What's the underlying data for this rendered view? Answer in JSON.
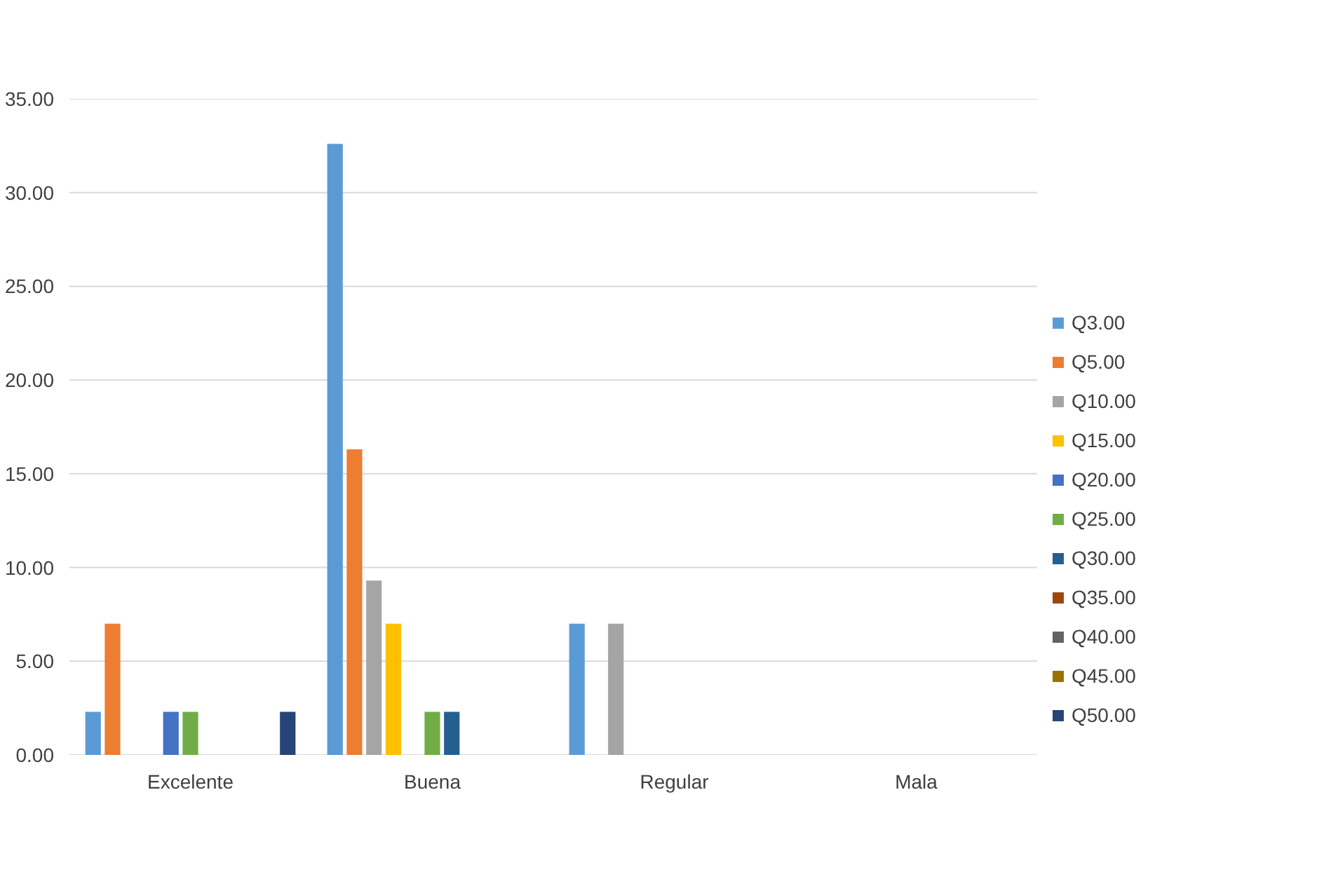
{
  "chart_data": {
    "type": "bar",
    "categories": [
      "Excelente",
      "Buena",
      "Regular",
      "Mala"
    ],
    "series": [
      {
        "name": "Q3.00",
        "color": "#5b9bd5",
        "values": [
          2.3,
          32.6,
          7.0,
          0
        ]
      },
      {
        "name": "Q5.00",
        "color": "#ed7d31",
        "values": [
          7.0,
          16.3,
          0,
          0
        ]
      },
      {
        "name": "Q10.00",
        "color": "#a5a5a5",
        "values": [
          0,
          9.3,
          7.0,
          0
        ]
      },
      {
        "name": "Q15.00",
        "color": "#ffc000",
        "values": [
          0,
          7.0,
          0,
          0
        ]
      },
      {
        "name": "Q20.00",
        "color": "#4472c4",
        "values": [
          2.3,
          0,
          0,
          0
        ]
      },
      {
        "name": "Q25.00",
        "color": "#70ad47",
        "values": [
          2.3,
          2.3,
          0,
          0
        ]
      },
      {
        "name": "Q30.00",
        "color": "#255e91",
        "values": [
          0,
          2.3,
          0,
          0
        ]
      },
      {
        "name": "Q35.00",
        "color": "#9e480e",
        "values": [
          0,
          0,
          0,
          0
        ]
      },
      {
        "name": "Q40.00",
        "color": "#636363",
        "values": [
          0,
          0,
          0,
          0
        ]
      },
      {
        "name": "Q45.00",
        "color": "#997300",
        "values": [
          0,
          0,
          0,
          0
        ]
      },
      {
        "name": "Q50.00",
        "color": "#264478",
        "values": [
          2.3,
          0,
          0,
          0
        ]
      }
    ],
    "ylim": [
      0,
      35
    ],
    "yticks": [
      {
        "value": 0,
        "label": "0.00"
      },
      {
        "value": 5,
        "label": "5.00"
      },
      {
        "value": 10,
        "label": "10.00"
      },
      {
        "value": 15,
        "label": "15.00"
      },
      {
        "value": 20,
        "label": "20.00"
      },
      {
        "value": 25,
        "label": "25.00"
      },
      {
        "value": 30,
        "label": "30.00"
      },
      {
        "value": 35,
        "label": "35.00"
      }
    ],
    "grid": "y",
    "legend": "right"
  }
}
